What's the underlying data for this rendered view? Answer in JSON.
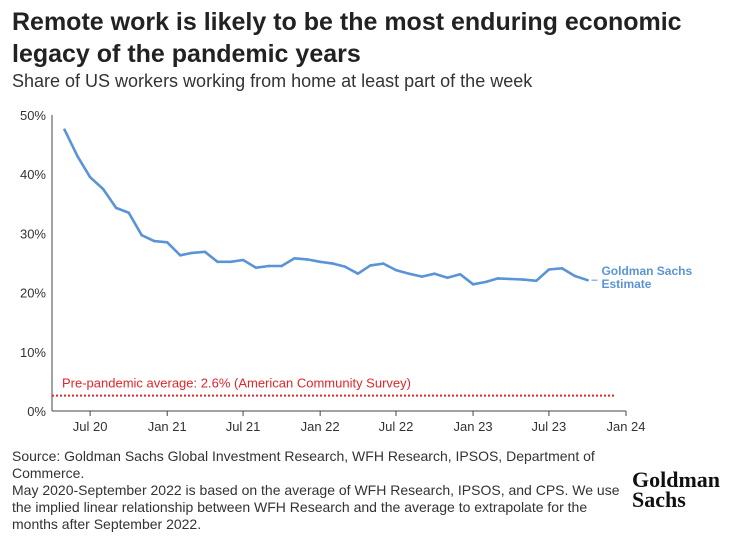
{
  "title": "Remote work is likely to be the most enduring economic legacy of the pandemic years",
  "subtitle": "Share of US workers working from home at least part of the week",
  "source_lines": [
    "Source: Goldman Sachs Global Investment Research, WFH Research, IPSOS, Department of Commerce.",
    "May 2020-September 2022 is based on the average of WFH Research, IPSOS, and CPS. We use the implied linear relationship between WFH Research and the average to extrapolate for the months after September 2022."
  ],
  "logo": {
    "line1": "Goldman",
    "line2": "Sachs"
  },
  "colors": {
    "series": "#5b94d6",
    "reference": "#e0262a",
    "axis": "#444444",
    "text": "#333333"
  },
  "chart_data": {
    "type": "line",
    "xlim": [
      "2020-04-01",
      "2024-01-01"
    ],
    "ylim": [
      0,
      50
    ],
    "yticks": [
      0,
      10,
      20,
      30,
      40,
      50
    ],
    "ytick_labels": [
      "0%",
      "10%",
      "20%",
      "30%",
      "40%",
      "50%"
    ],
    "xticks": [
      "2020-07-01",
      "2021-01-01",
      "2021-07-01",
      "2022-01-01",
      "2022-07-01",
      "2023-01-01",
      "2023-07-01",
      "2024-01-01"
    ],
    "xtick_labels": [
      "Jul 20",
      "Jan 21",
      "Jul 21",
      "Jan 22",
      "Jul 22",
      "Jan 23",
      "Jul 23",
      "Jan 24"
    ],
    "grid": false,
    "series": [
      {
        "x": [
          "2020-05-01",
          "2020-06-01",
          "2020-07-01",
          "2020-08-01",
          "2020-09-01",
          "2020-10-01",
          "2020-11-01",
          "2020-12-01",
          "2021-01-01",
          "2021-02-01",
          "2021-03-01",
          "2021-04-01",
          "2021-05-01",
          "2021-06-01",
          "2021-07-01",
          "2021-08-01",
          "2021-09-01",
          "2021-10-01",
          "2021-11-01",
          "2021-12-01",
          "2022-01-01",
          "2022-02-01",
          "2022-03-01",
          "2022-04-01",
          "2022-05-01",
          "2022-06-01",
          "2022-07-01",
          "2022-08-01",
          "2022-09-01",
          "2022-10-01",
          "2022-11-01",
          "2022-12-01",
          "2023-01-01",
          "2023-02-01",
          "2023-03-01",
          "2023-04-01",
          "2023-05-01",
          "2023-06-01",
          "2023-07-01",
          "2023-08-01",
          "2023-09-01",
          "2023-10-01"
        ],
        "values": [
          47.5,
          43.0,
          39.5,
          37.5,
          34.3,
          33.5,
          29.7,
          28.7,
          28.5,
          26.3,
          26.7,
          26.9,
          25.2,
          25.2,
          25.5,
          24.2,
          24.5,
          24.5,
          25.8,
          25.6,
          25.2,
          24.9,
          24.4,
          23.2,
          24.6,
          24.9,
          23.8,
          23.2,
          22.7,
          23.2,
          22.5,
          23.1,
          21.4,
          21.8,
          22.4,
          22.3,
          22.2,
          22.0,
          23.9,
          24.1,
          22.8,
          22.1
        ],
        "end_label": [
          "Goldman Sachs",
          "Estimate"
        ]
      }
    ],
    "reference_line": {
      "value": 2.6,
      "label": "Pre-pandemic average: 2.6% (American Community Survey)"
    }
  }
}
